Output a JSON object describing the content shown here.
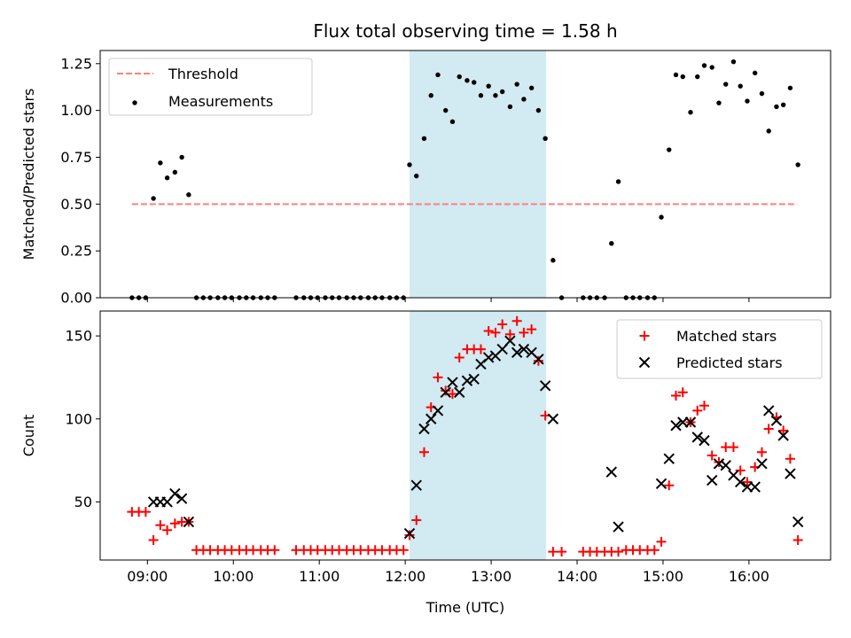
{
  "title": "Flux total observing time = 1.58 h",
  "colors": {
    "threshold": "#ff7f7f",
    "measurement": "#000000",
    "matched": "#ff0000",
    "predicted": "#000000",
    "span": "#add8e6"
  },
  "chart_data": [
    {
      "type": "scatter",
      "ylabel": "Matched/Predicted stars",
      "xlim": [
        8.45,
        16.95
      ],
      "ylim": [
        0,
        1.32
      ],
      "yticks": [
        0,
        0.25,
        0.5,
        0.75,
        1.0,
        1.25
      ],
      "ytick_labels": [
        "0.00",
        "0.25",
        "0.50",
        "0.75",
        "1.00",
        "1.25"
      ],
      "legend": "upper-left",
      "shaded_span": {
        "x": [
          12.05,
          13.64
        ]
      },
      "series": [
        {
          "name": "Threshold",
          "style": "dashed-line",
          "x": [
            8.82,
            16.56
          ],
          "y": [
            0.5,
            0.5
          ]
        },
        {
          "name": "Measurements",
          "style": "dot",
          "points": [
            [
              8.82,
              0
            ],
            [
              8.9,
              0
            ],
            [
              8.98,
              0
            ],
            [
              9.07,
              0.53
            ],
            [
              9.15,
              0.72
            ],
            [
              9.23,
              0.64
            ],
            [
              9.32,
              0.67
            ],
            [
              9.4,
              0.75
            ],
            [
              9.48,
              0.55
            ],
            [
              9.57,
              0
            ],
            [
              9.65,
              0
            ],
            [
              9.73,
              0
            ],
            [
              9.82,
              0
            ],
            [
              9.9,
              0
            ],
            [
              9.98,
              0
            ],
            [
              10.07,
              0
            ],
            [
              10.15,
              0
            ],
            [
              10.23,
              0
            ],
            [
              10.32,
              0
            ],
            [
              10.4,
              0
            ],
            [
              10.48,
              0
            ],
            [
              10.73,
              0
            ],
            [
              10.82,
              0
            ],
            [
              10.9,
              0
            ],
            [
              10.98,
              0
            ],
            [
              11.07,
              0
            ],
            [
              11.15,
              0
            ],
            [
              11.23,
              0
            ],
            [
              11.32,
              0
            ],
            [
              11.4,
              0
            ],
            [
              11.48,
              0
            ],
            [
              11.57,
              0
            ],
            [
              11.65,
              0
            ],
            [
              11.73,
              0
            ],
            [
              11.82,
              0
            ],
            [
              11.9,
              0
            ],
            [
              11.98,
              0
            ],
            [
              12.05,
              0.71
            ],
            [
              12.13,
              0.65
            ],
            [
              12.22,
              0.85
            ],
            [
              12.3,
              1.08
            ],
            [
              12.38,
              1.19
            ],
            [
              12.47,
              1.0
            ],
            [
              12.55,
              0.94
            ],
            [
              12.63,
              1.18
            ],
            [
              12.72,
              1.16
            ],
            [
              12.8,
              1.15
            ],
            [
              12.88,
              1.08
            ],
            [
              12.97,
              1.13
            ],
            [
              13.05,
              1.08
            ],
            [
              13.13,
              1.1
            ],
            [
              13.22,
              1.02
            ],
            [
              13.3,
              1.14
            ],
            [
              13.38,
              1.06
            ],
            [
              13.47,
              1.12
            ],
            [
              13.55,
              1.0
            ],
            [
              13.63,
              0.85
            ],
            [
              13.72,
              0.2
            ],
            [
              13.82,
              0
            ],
            [
              14.07,
              0
            ],
            [
              14.15,
              0
            ],
            [
              14.23,
              0
            ],
            [
              14.32,
              0
            ],
            [
              14.4,
              0.29
            ],
            [
              14.48,
              0.62
            ],
            [
              14.57,
              0
            ],
            [
              14.65,
              0
            ],
            [
              14.73,
              0
            ],
            [
              14.82,
              0
            ],
            [
              14.9,
              0
            ],
            [
              14.98,
              0.43
            ],
            [
              15.07,
              0.79
            ],
            [
              15.15,
              1.19
            ],
            [
              15.23,
              1.18
            ],
            [
              15.32,
              0.99
            ],
            [
              15.4,
              1.18
            ],
            [
              15.48,
              1.24
            ],
            [
              15.57,
              1.23
            ],
            [
              15.65,
              1.04
            ],
            [
              15.73,
              1.14
            ],
            [
              15.82,
              1.26
            ],
            [
              15.9,
              1.13
            ],
            [
              15.98,
              1.05
            ],
            [
              16.07,
              1.2
            ],
            [
              16.15,
              1.09
            ],
            [
              16.23,
              0.89
            ],
            [
              16.32,
              1.02
            ],
            [
              16.4,
              1.03
            ],
            [
              16.48,
              1.12
            ],
            [
              16.57,
              0.71
            ]
          ]
        }
      ]
    },
    {
      "type": "scatter",
      "xlabel": "Time (UTC)",
      "ylabel": "Count",
      "xlim": [
        8.45,
        16.95
      ],
      "ylim": [
        15,
        165
      ],
      "yticks": [
        50,
        100,
        150
      ],
      "xticks": [
        9,
        10,
        11,
        12,
        13,
        14,
        15,
        16
      ],
      "xtick_labels": [
        "09:00",
        "10:00",
        "11:00",
        "12:00",
        "13:00",
        "14:00",
        "15:00",
        "16:00"
      ],
      "legend": "upper-right",
      "shaded_span": {
        "x": [
          12.05,
          13.64
        ]
      },
      "series": [
        {
          "name": "Matched stars",
          "marker": "plus",
          "points": [
            [
              8.82,
              44
            ],
            [
              8.9,
              44
            ],
            [
              8.98,
              44
            ],
            [
              9.07,
              27
            ],
            [
              9.15,
              36
            ],
            [
              9.23,
              33
            ],
            [
              9.32,
              37
            ],
            [
              9.4,
              38
            ],
            [
              9.48,
              38
            ],
            [
              9.57,
              21
            ],
            [
              9.65,
              21
            ],
            [
              9.73,
              21
            ],
            [
              9.82,
              21
            ],
            [
              9.9,
              21
            ],
            [
              9.98,
              21
            ],
            [
              10.07,
              21
            ],
            [
              10.15,
              21
            ],
            [
              10.23,
              21
            ],
            [
              10.32,
              21
            ],
            [
              10.4,
              21
            ],
            [
              10.48,
              21
            ],
            [
              10.73,
              21
            ],
            [
              10.82,
              21
            ],
            [
              10.9,
              21
            ],
            [
              10.98,
              21
            ],
            [
              11.07,
              21
            ],
            [
              11.15,
              21
            ],
            [
              11.23,
              21
            ],
            [
              11.32,
              21
            ],
            [
              11.4,
              21
            ],
            [
              11.48,
              21
            ],
            [
              11.57,
              21
            ],
            [
              11.65,
              21
            ],
            [
              11.73,
              21
            ],
            [
              11.82,
              21
            ],
            [
              11.9,
              21
            ],
            [
              11.98,
              21
            ],
            [
              12.05,
              30
            ],
            [
              12.13,
              39
            ],
            [
              12.22,
              80
            ],
            [
              12.3,
              107
            ],
            [
              12.38,
              125
            ],
            [
              12.47,
              117
            ],
            [
              12.55,
              115
            ],
            [
              12.63,
              137
            ],
            [
              12.72,
              142
            ],
            [
              12.8,
              142
            ],
            [
              12.88,
              142
            ],
            [
              12.97,
              153
            ],
            [
              13.05,
              152
            ],
            [
              13.13,
              157
            ],
            [
              13.22,
              151
            ],
            [
              13.3,
              159
            ],
            [
              13.38,
              152
            ],
            [
              13.47,
              154
            ],
            [
              13.55,
              135
            ],
            [
              13.63,
              102
            ],
            [
              13.72,
              20
            ],
            [
              13.82,
              20
            ],
            [
              14.07,
              20
            ],
            [
              14.15,
              20
            ],
            [
              14.23,
              20
            ],
            [
              14.32,
              20
            ],
            [
              14.4,
              20
            ],
            [
              14.48,
              20
            ],
            [
              14.57,
              21
            ],
            [
              14.65,
              21
            ],
            [
              14.73,
              21
            ],
            [
              14.82,
              21
            ],
            [
              14.9,
              21
            ],
            [
              14.98,
              26
            ],
            [
              15.07,
              60
            ],
            [
              15.15,
              114
            ],
            [
              15.23,
              116
            ],
            [
              15.32,
              98
            ],
            [
              15.4,
              105
            ],
            [
              15.48,
              108
            ],
            [
              15.57,
              78
            ],
            [
              15.65,
              74
            ],
            [
              15.73,
              83
            ],
            [
              15.82,
              83
            ],
            [
              15.9,
              69
            ],
            [
              15.98,
              62
            ],
            [
              16.07,
              71
            ],
            [
              16.15,
              80
            ],
            [
              16.23,
              94
            ],
            [
              16.32,
              101
            ],
            [
              16.4,
              93
            ],
            [
              16.48,
              76
            ],
            [
              16.57,
              27
            ]
          ]
        },
        {
          "name": "Predicted stars",
          "marker": "x",
          "points": [
            [
              9.07,
              50
            ],
            [
              9.15,
              50
            ],
            [
              9.23,
              50
            ],
            [
              9.32,
              55
            ],
            [
              9.4,
              52
            ],
            [
              9.48,
              38
            ],
            [
              12.05,
              31
            ],
            [
              12.13,
              60
            ],
            [
              12.22,
              94
            ],
            [
              12.3,
              100
            ],
            [
              12.38,
              105
            ],
            [
              12.47,
              116
            ],
            [
              12.55,
              122
            ],
            [
              12.63,
              116
            ],
            [
              12.72,
              123
            ],
            [
              12.8,
              124
            ],
            [
              12.88,
              133
            ],
            [
              12.97,
              137
            ],
            [
              13.05,
              138
            ],
            [
              13.13,
              142
            ],
            [
              13.22,
              147
            ],
            [
              13.3,
              140
            ],
            [
              13.38,
              142
            ],
            [
              13.47,
              140
            ],
            [
              13.55,
              136
            ],
            [
              13.63,
              120
            ],
            [
              13.72,
              100
            ],
            [
              14.4,
              68
            ],
            [
              14.48,
              35
            ],
            [
              14.98,
              61
            ],
            [
              15.07,
              76
            ],
            [
              15.15,
              96
            ],
            [
              15.23,
              98
            ],
            [
              15.32,
              98
            ],
            [
              15.4,
              89
            ],
            [
              15.48,
              87
            ],
            [
              15.57,
              63
            ],
            [
              15.65,
              73
            ],
            [
              15.73,
              72
            ],
            [
              15.82,
              66
            ],
            [
              15.9,
              62
            ],
            [
              15.98,
              59
            ],
            [
              16.07,
              59
            ],
            [
              16.15,
              73
            ],
            [
              16.23,
              105
            ],
            [
              16.32,
              99
            ],
            [
              16.4,
              90
            ],
            [
              16.48,
              67
            ],
            [
              16.57,
              38
            ]
          ]
        }
      ]
    }
  ]
}
